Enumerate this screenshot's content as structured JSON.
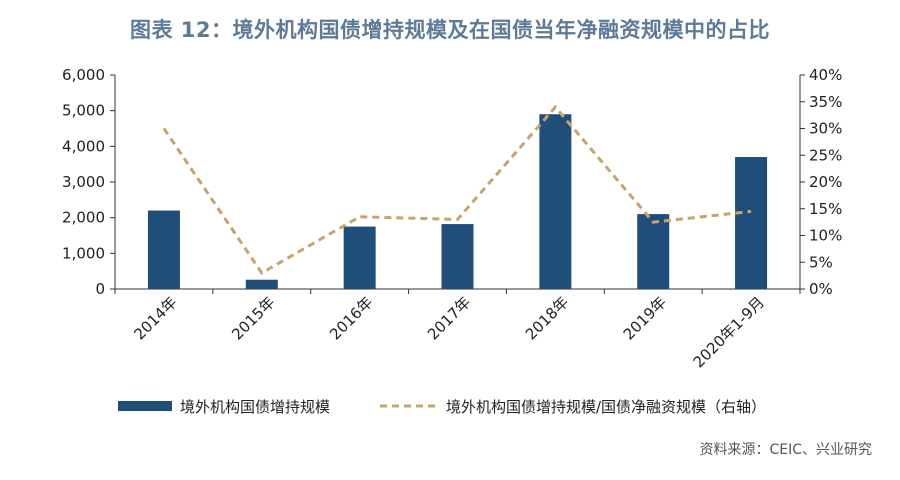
{
  "title": "图表 12：境外机构国债增持规模及在国债当年净融资规模中的占比",
  "source": "资料来源：CEIC、兴业研究",
  "colors": {
    "bar": "#1f4e79",
    "line": "#c8a46a",
    "title": "#5d7b97",
    "axis": "#333333"
  },
  "chart_data": {
    "type": "bar",
    "categories": [
      "2014年",
      "2015年",
      "2016年",
      "2017年",
      "2018年",
      "2019年",
      "2020年1-9月"
    ],
    "series": [
      {
        "name": "境外机构国债增持规模",
        "type": "bar",
        "axis": "left",
        "values": [
          2200,
          260,
          1750,
          1820,
          4900,
          2100,
          3700
        ]
      },
      {
        "name": "境外机构国债增持规模/国债净融资规模（右轴）",
        "type": "line",
        "style": "dashed",
        "axis": "right",
        "values": [
          30.0,
          3.0,
          13.5,
          13.0,
          34.0,
          12.5,
          14.5
        ]
      }
    ],
    "ylim": [
      0,
      6000
    ],
    "yticks": [
      "0",
      "1,000",
      "2,000",
      "3,000",
      "4,000",
      "5,000",
      "6,000"
    ],
    "y2lim": [
      0,
      40
    ],
    "y2ticks": [
      "0%",
      "5%",
      "10%",
      "15%",
      "20%",
      "25%",
      "30%",
      "35%",
      "40%"
    ],
    "grid": false,
    "legend": "bottom"
  }
}
